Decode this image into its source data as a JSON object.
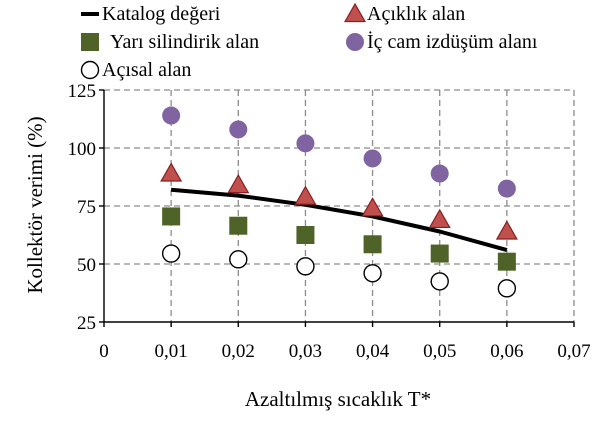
{
  "chart_data": {
    "type": "scatter",
    "title": "",
    "xlabel": "Azaltılmış sıcaklık T*",
    "ylabel": "Kollektör verimi (%)",
    "xlim": [
      0,
      0.07
    ],
    "ylim": [
      25,
      125
    ],
    "grid": true,
    "legend_placement": "top",
    "x_ticks": [
      {
        "value": 0,
        "label": "0"
      },
      {
        "value": 0.01,
        "label": "0,01"
      },
      {
        "value": 0.02,
        "label": "0,02"
      },
      {
        "value": 0.03,
        "label": "0,03"
      },
      {
        "value": 0.04,
        "label": "0,04"
      },
      {
        "value": 0.05,
        "label": "0,05"
      },
      {
        "value": 0.06,
        "label": "0,06"
      },
      {
        "value": 0.07,
        "label": "0,07"
      }
    ],
    "y_ticks": [
      {
        "value": 25,
        "label": "25"
      },
      {
        "value": 50,
        "label": "50"
      },
      {
        "value": 75,
        "label": "75"
      },
      {
        "value": 100,
        "label": "100"
      },
      {
        "value": 125,
        "label": "125"
      }
    ],
    "series": [
      {
        "name": "Katalog değeri",
        "kind": "line",
        "color": "#000000",
        "marker": "none",
        "x": [
          0.01,
          0.02,
          0.03,
          0.04,
          0.05,
          0.06
        ],
        "y": [
          82,
          79.5,
          75.5,
          70.5,
          64,
          56
        ]
      },
      {
        "name": "Açıklık alan",
        "kind": "scatter",
        "color": "#c0504d",
        "marker": "triangle",
        "x": [
          0.01,
          0.02,
          0.03,
          0.04,
          0.05,
          0.06
        ],
        "y": [
          89,
          84,
          79,
          74,
          69,
          64
        ]
      },
      {
        "name": "Yarı silindirik alan",
        "kind": "scatter",
        "color": "#4f6228",
        "marker": "square",
        "x": [
          0.01,
          0.02,
          0.03,
          0.04,
          0.05,
          0.06
        ],
        "y": [
          70.5,
          66.5,
          62.5,
          58.5,
          54.5,
          51
        ]
      },
      {
        "name": "İç cam izdüşüm alanı",
        "kind": "scatter",
        "color": "#8064a2",
        "marker": "circle",
        "x": [
          0.01,
          0.02,
          0.03,
          0.04,
          0.05,
          0.06
        ],
        "y": [
          114,
          108,
          102,
          95.5,
          89,
          82.5
        ]
      },
      {
        "name": "Açısal alan",
        "kind": "scatter",
        "color": "#000000",
        "marker": "open-circle",
        "x": [
          0.01,
          0.02,
          0.03,
          0.04,
          0.05,
          0.06
        ],
        "y": [
          54.5,
          52,
          49,
          46,
          42.5,
          39.5
        ]
      }
    ]
  }
}
